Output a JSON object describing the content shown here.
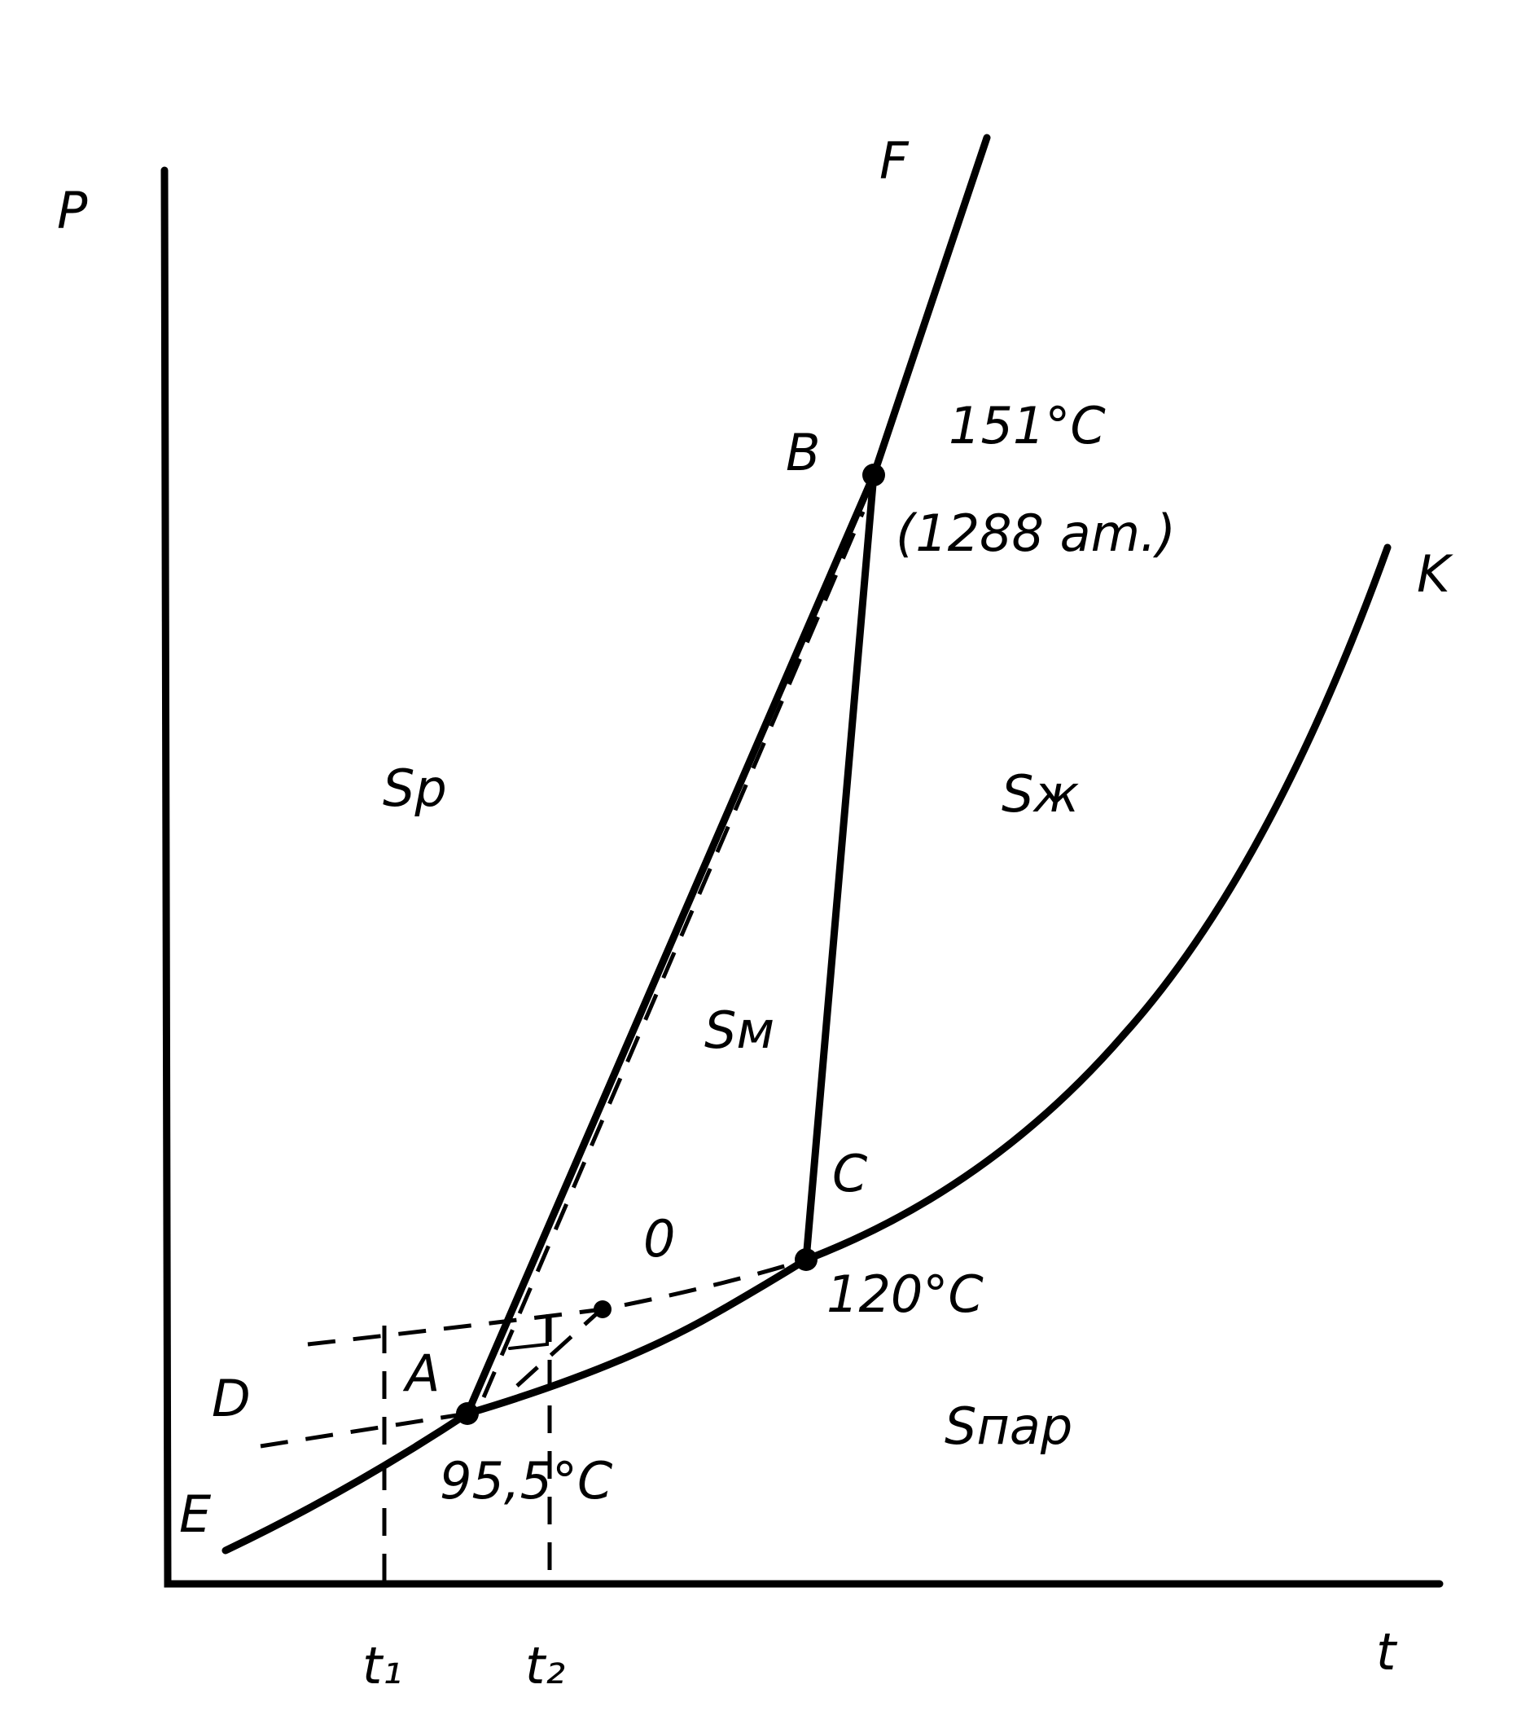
{
  "axes": {
    "y_label": "P",
    "x_label": "t",
    "x_marks": [
      "t₁",
      "t₂"
    ]
  },
  "points": {
    "A": "A",
    "B": "B",
    "C": "C",
    "O": "0",
    "D": "D",
    "E": "E",
    "F": "F",
    "K": "K"
  },
  "annotations": {
    "triple_B_temp": "151°C",
    "triple_B_pressure": "(1288 am.)",
    "triple_C_temp": "120°C",
    "triple_A_temp": "95,5°C"
  },
  "regions": {
    "rhombic": "Sр",
    "monoclinic": "Sм",
    "liquid": "Sж",
    "vapor": "Sпар"
  }
}
